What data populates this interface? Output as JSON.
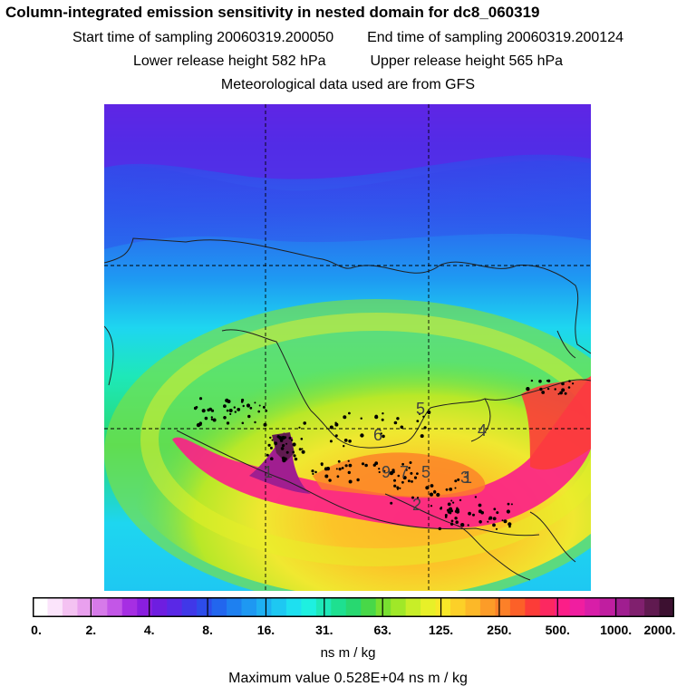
{
  "header": {
    "title": "Column-integrated emission sensitivity in nested domain for dc8_060319",
    "start_label": "Start time of sampling 20060319.200050",
    "end_label": "End time of sampling 20060319.200124",
    "lower_label": "Lower release height  582 hPa",
    "upper_label": "Upper release height  565 hPa",
    "met_label": "Meteorological data used are from GFS"
  },
  "map": {
    "point_labels": [
      "1",
      "2",
      "3",
      "4",
      "5",
      "6",
      "7",
      "9",
      "1",
      "5"
    ]
  },
  "colorbar": {
    "tick_labels": [
      "0.",
      "2.",
      "4.",
      "8.",
      "16.",
      "31.",
      "63.",
      "125.",
      "250.",
      "500.",
      "1000.",
      "2000."
    ],
    "colors": [
      "#ffffff",
      "#fbe4fb",
      "#f4c2f2",
      "#e9a0ee",
      "#d67ae9",
      "#c356e7",
      "#a62ee3",
      "#8a1ee0",
      "#6e1ee0",
      "#5a28e6",
      "#4038e8",
      "#2d4cea",
      "#2266ee",
      "#1e80f0",
      "#1e98f2",
      "#1eb0f2",
      "#1ec8f2",
      "#1ee0f0",
      "#1ef0e0",
      "#1ee8b8",
      "#1ee090",
      "#28d870",
      "#48d848",
      "#78e030",
      "#a0e828",
      "#c8ee28",
      "#e8f028",
      "#f8e828",
      "#fcd028",
      "#fcb828",
      "#fc9c28",
      "#fc8028",
      "#fc6028",
      "#fc3c38",
      "#fc2860",
      "#fc1e88",
      "#f01ea0",
      "#d81ea8",
      "#c01ea0",
      "#a01e90",
      "#80206e",
      "#601a50",
      "#3c1030"
    ],
    "units": "ns m / kg"
  },
  "footer": {
    "max_label": "Maximum value  0.528E+04 ns m / kg"
  }
}
